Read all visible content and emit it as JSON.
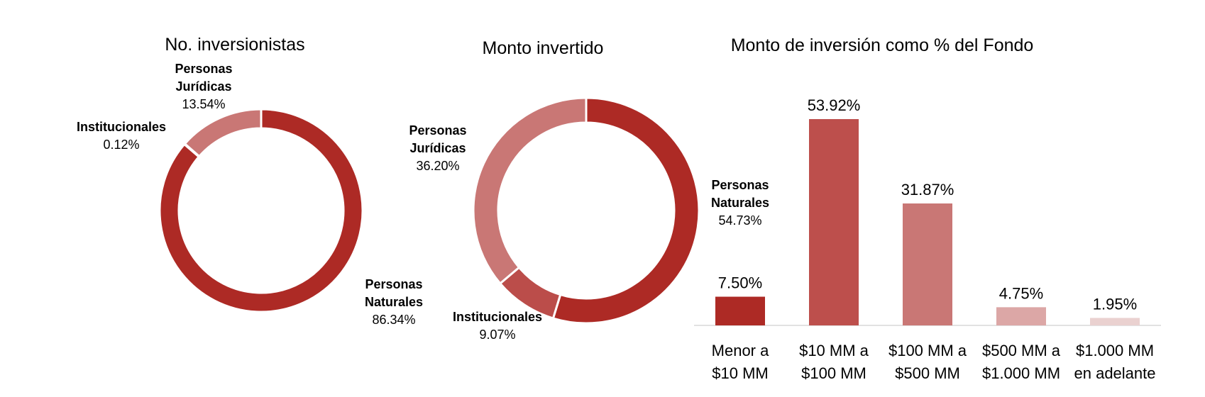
{
  "chart_data": [
    {
      "type": "pie",
      "title": "No. inversionistas",
      "slices": [
        {
          "name": "Personas Naturales",
          "name_lines": [
            "Personas",
            "Naturales"
          ],
          "value": 86.34,
          "label": "86.34%",
          "color": "#ad2a25"
        },
        {
          "name": "Institucionales",
          "name_lines": [
            "Institucionales"
          ],
          "value": 0.12,
          "label": "0.12%",
          "color": "#ad2a25"
        },
        {
          "name": "Personas Jurídicas",
          "name_lines": [
            "Personas",
            "Jurídicas"
          ],
          "value": 13.54,
          "label": "13.54%",
          "color": "#c97775"
        }
      ]
    },
    {
      "type": "pie",
      "title": "Monto invertido",
      "slices": [
        {
          "name": "Personas Naturales",
          "name_lines": [
            "Personas",
            "Naturales"
          ],
          "value": 54.73,
          "label": "54.73%",
          "color": "#ad2a25"
        },
        {
          "name": "Institucionales",
          "name_lines": [
            "Institucionales"
          ],
          "value": 9.07,
          "label": "9.07%",
          "color": "#bb4d4a"
        },
        {
          "name": "Personas Jurídicas",
          "name_lines": [
            "Personas",
            "Jurídicas"
          ],
          "value": 36.2,
          "label": "36.20%",
          "color": "#c97775"
        }
      ]
    },
    {
      "type": "bar",
      "title": "Monto de inversión como % del Fondo",
      "categories": [
        "Menor a $10 MM",
        "$10 MM a $100 MM",
        "$100 MM a $500 MM",
        "$500 MM a $1.000 MM",
        "$1.000 MM en adelante"
      ],
      "category_lines": [
        [
          "Menor a",
          "$10 MM"
        ],
        [
          "$10 MM a",
          "$100 MM"
        ],
        [
          "$100 MM a",
          "$500 MM"
        ],
        [
          "$500 MM a",
          "$1.000 MM"
        ],
        [
          "$1.000 MM",
          "en adelante"
        ]
      ],
      "values": [
        7.5,
        53.92,
        31.87,
        4.75,
        1.95
      ],
      "value_labels": [
        "7.50%",
        "53.92%",
        "31.87%",
        "4.75%",
        "1.95%"
      ],
      "colors": [
        "#ad2a25",
        "#bd4f4c",
        "#c97775",
        "#dca7a6",
        "#ead1d0"
      ],
      "ylim": [
        0,
        55
      ]
    }
  ]
}
